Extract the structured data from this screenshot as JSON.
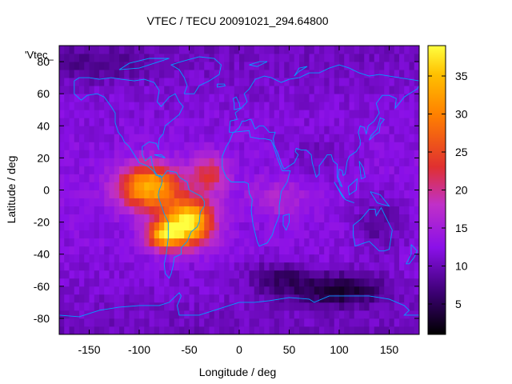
{
  "chart_data": {
    "type": "heatmap",
    "title": "VTEC / TECU 20091021_294.64800",
    "xlabel": "Longitude / deg",
    "ylabel": "Latitude / deg",
    "series_key": "'Vtec_",
    "xlim": [
      -180,
      180
    ],
    "ylim": [
      -90,
      90
    ],
    "xticks": [
      -150,
      -100,
      -50,
      0,
      50,
      100,
      150
    ],
    "yticks": [
      -80,
      -60,
      -40,
      -20,
      0,
      20,
      40,
      60,
      80
    ],
    "colorbar": {
      "range": [
        1,
        39
      ],
      "ticks": [
        5,
        10,
        15,
        20,
        25,
        30,
        35
      ],
      "palette": [
        "#000000",
        "#3a0070",
        "#8a10e8",
        "#c030c8",
        "#e03030",
        "#ff8000",
        "#ffc000",
        "#ffff40"
      ]
    },
    "grid": false,
    "grid_resolution_deg": 5,
    "background_tec": 10,
    "features": [
      {
        "name": "equatorial-anomaly-north",
        "lon": -95,
        "lat": 0,
        "peak_tec": 33
      },
      {
        "name": "equatorial-anomaly-south",
        "lon": -55,
        "lat": -20,
        "peak_tec": 37
      },
      {
        "name": "southern-crest",
        "lon": -65,
        "lat": -28,
        "peak_tec": 36
      },
      {
        "name": "trough-antarctic",
        "lon": 100,
        "lat": -62,
        "peak_tec": 2
      },
      {
        "name": "high-latitude-north",
        "lon": -150,
        "lat": 75,
        "peak_tec": 6
      }
    ]
  },
  "overlay": {
    "coastline_color": "#00a0ff"
  }
}
